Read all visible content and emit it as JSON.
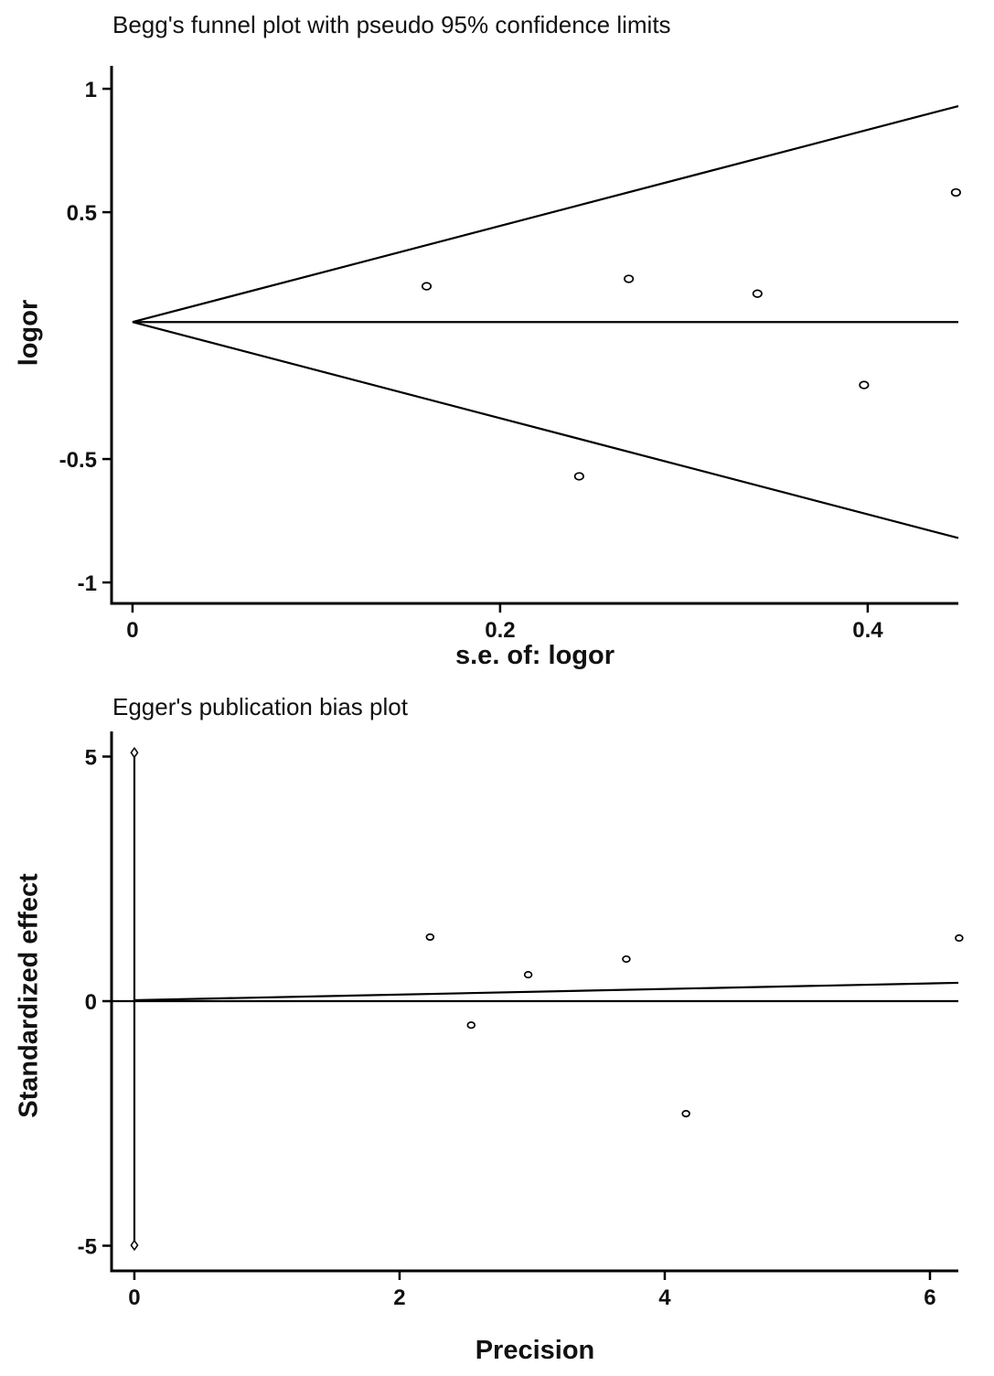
{
  "chart_data": [
    {
      "type": "scatter",
      "title": "Begg's funnel plot with pseudo 95% confidence limits",
      "xlabel": "s.e. of: logor",
      "ylabel": "logor",
      "xlim": [
        -0.0114,
        0.4493
      ],
      "ylim": [
        -1.085,
        1.093
      ],
      "grid": false,
      "legend": false,
      "xticks": [
        {
          "v": 0,
          "label": "0"
        },
        {
          "v": 0.2,
          "label": "0.2"
        },
        {
          "v": 0.4,
          "label": "0.4"
        }
      ],
      "yticks": [
        {
          "v": 1,
          "label": "1"
        },
        {
          "v": 0.5,
          "label": "0.5"
        },
        {
          "v": -0.5,
          "label": "-0.5"
        },
        {
          "v": -1,
          "label": "-1"
        }
      ],
      "pooled_log_or": 0.055,
      "lines": [
        {
          "name": "upper-95ci-limit-line",
          "x1": 0,
          "y1": 0.055,
          "x2": 0.4493,
          "y2": 0.93
        },
        {
          "name": "lower-95ci-limit-line",
          "x1": 0,
          "y1": 0.055,
          "x2": 0.4493,
          "y2": -0.82
        },
        {
          "name": "pooled-estimate-line",
          "x1": 0,
          "y1": 0.055,
          "x2": 0.4493,
          "y2": 0.055
        }
      ],
      "points": [
        {
          "x": 0.16,
          "y": 0.2
        },
        {
          "x": 0.27,
          "y": 0.23
        },
        {
          "x": 0.34,
          "y": 0.17
        },
        {
          "x": 0.448,
          "y": 0.58
        },
        {
          "x": 0.398,
          "y": -0.2
        },
        {
          "x": 0.243,
          "y": -0.57
        }
      ],
      "marker": "open-circle"
    },
    {
      "type": "scatter",
      "title": "Egger's publication bias plot",
      "xlabel": "Precision",
      "ylabel": "Standardized effect",
      "xlim": [
        -0.172,
        6.214
      ],
      "ylim": [
        -5.514,
        5.514
      ],
      "grid": false,
      "legend": false,
      "xticks": [
        {
          "v": 0,
          "label": "0"
        },
        {
          "v": 2,
          "label": "2"
        },
        {
          "v": 4,
          "label": "4"
        },
        {
          "v": 6,
          "label": "6"
        }
      ],
      "yticks": [
        {
          "v": 5,
          "label": "5"
        },
        {
          "v": 0,
          "label": "0"
        },
        {
          "v": -5,
          "label": "-5"
        }
      ],
      "lines": [
        {
          "name": "zero-reference-line",
          "x1": -0.172,
          "y1": 0,
          "x2": 6.214,
          "y2": 0
        },
        {
          "name": "egger-regression-line",
          "x1": 0,
          "y1": 0.02,
          "x2": 6.214,
          "y2": 0.375
        },
        {
          "name": "intercept-ci-line",
          "x1": 0,
          "y1": -4.99,
          "x2": 0,
          "y2": 5.08,
          "endMarker": "diamond"
        }
      ],
      "points": [
        {
          "x": 2.23,
          "y": 1.31
        },
        {
          "x": 2.97,
          "y": 0.54
        },
        {
          "x": 2.54,
          "y": -0.49
        },
        {
          "x": 3.71,
          "y": 0.86
        },
        {
          "x": 4.16,
          "y": -2.3
        },
        {
          "x": 6.22,
          "y": 1.29
        }
      ],
      "marker": "open-circle"
    }
  ]
}
